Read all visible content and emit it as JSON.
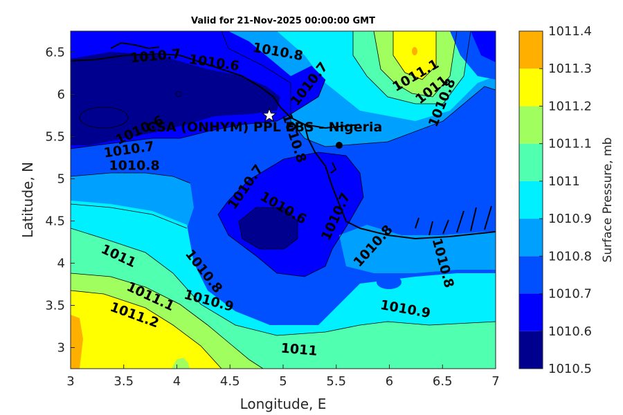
{
  "title": "Valid for 21-Nov-2025 00:00:00 GMT",
  "xlabel": "Longitude, E",
  "ylabel": "Latitude, N",
  "colorbar_label": "Surface Pressure, mb",
  "site_label": "CSA (ONHYM) PPL EBS - Nigeria",
  "colors": {
    "1010.5": "#00008f",
    "1010.6": "#0000ff",
    "1010.7": "#0050ff",
    "1010.8": "#00a0ff",
    "1010.9": "#00f0ff",
    "1011": "#50ffaf",
    "1011.1": "#a0ff5f",
    "1011.2": "#ffff00",
    "1011.3": "#ffaf00",
    "1011.4": "#ff5f00"
  },
  "chart_data": {
    "type": "contour",
    "x_range": [
      3,
      7
    ],
    "y_range": [
      2.75,
      6.75
    ],
    "x_ticks": [
      "3",
      "3.5",
      "4",
      "4.5",
      "5",
      "5.5",
      "6",
      "6.5",
      "7"
    ],
    "y_ticks": [
      "3",
      "3.5",
      "4",
      "4.5",
      "5",
      "5.5",
      "6",
      "6.5"
    ],
    "colorbar_ticks": [
      "1010.5",
      "1010.6",
      "1010.7",
      "1010.8",
      "1010.9",
      "1011",
      "1011.1",
      "1011.2",
      "1011.3",
      "1011.4"
    ],
    "colorbar_range": [
      1010.5,
      1011.4
    ],
    "grid": false,
    "marker": {
      "lon": 4.87,
      "lat": 5.75,
      "symbol": "star"
    },
    "contour_labels": [
      {
        "text": "1010.7",
        "lon": 3.8,
        "lat": 6.45,
        "angle": -5
      },
      {
        "text": "1010.6",
        "lon": 4.35,
        "lat": 6.37,
        "angle": 8
      },
      {
        "text": "1010.8",
        "lon": 4.95,
        "lat": 6.5,
        "angle": 10
      },
      {
        "text": "1010.7",
        "lon": 5.25,
        "lat": 6.12,
        "angle": -52
      },
      {
        "text": "1011.1",
        "lon": 6.25,
        "lat": 6.22,
        "angle": -30
      },
      {
        "text": "1011",
        "lon": 6.4,
        "lat": 6.05,
        "angle": -38
      },
      {
        "text": "1010.8",
        "lon": 6.5,
        "lat": 5.9,
        "angle": -68
      },
      {
        "text": "1010.6",
        "lon": 3.65,
        "lat": 5.57,
        "angle": -25
      },
      {
        "text": "1010.7",
        "lon": 3.55,
        "lat": 5.34,
        "angle": -8
      },
      {
        "text": "1010.8",
        "lon": 3.6,
        "lat": 5.15,
        "angle": 0
      },
      {
        "text": "1010.8",
        "lon": 5.1,
        "lat": 5.48,
        "angle": 72
      },
      {
        "text": "1010.7",
        "lon": 4.65,
        "lat": 4.9,
        "angle": -55
      },
      {
        "text": "1010.6",
        "lon": 5.0,
        "lat": 4.65,
        "angle": 30
      },
      {
        "text": "1010.7",
        "lon": 5.5,
        "lat": 4.55,
        "angle": -65
      },
      {
        "text": "1010.8",
        "lon": 5.85,
        "lat": 4.2,
        "angle": -48
      },
      {
        "text": "1010.8",
        "lon": 6.5,
        "lat": 4.0,
        "angle": 75
      },
      {
        "text": "1011",
        "lon": 3.45,
        "lat": 4.08,
        "angle": 25
      },
      {
        "text": "1010.8",
        "lon": 4.25,
        "lat": 3.9,
        "angle": 52
      },
      {
        "text": "1010.9",
        "lon": 4.3,
        "lat": 3.55,
        "angle": 15
      },
      {
        "text": "1011.1",
        "lon": 3.75,
        "lat": 3.6,
        "angle": 25
      },
      {
        "text": "1011.2",
        "lon": 3.6,
        "lat": 3.38,
        "angle": 20
      },
      {
        "text": "1010.9",
        "lon": 6.15,
        "lat": 3.45,
        "angle": 10
      },
      {
        "text": "1011",
        "lon": 5.15,
        "lat": 2.97,
        "angle": 5
      }
    ]
  }
}
